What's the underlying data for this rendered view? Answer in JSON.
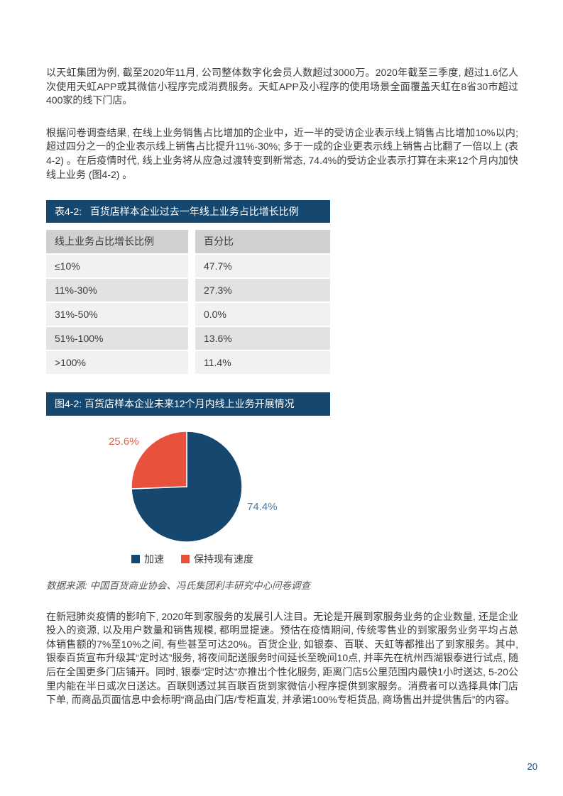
{
  "paragraphs": {
    "p1": "以天虹集团为例, 截至2020年11月, 公司整体数字化会员人数超过3000万。2020年截至三季度, 超过1.6亿人次使用天虹APP或其微信小程序完成消费服务。天虹APP及小程序的使用场景全面覆盖天虹在8省30市超过400家的线下门店。",
    "p2": "根据问卷调查结果, 在线上业务销售占比增加的企业中，近一半的受访企业表示线上销售占比增加10%以内; 超过四分之一的企业表示线上销售占比提升11%-30%; 多于一成的企业更表示线上销售占比翻了一倍以上 (表4-2) 。在后疫情时代, 线上业务将从应急过渡转变到新常态, 74.4%的受访企业表示打算在未来12个月内加快线上业务 (图4-2) 。",
    "p3": "在新冠肺炎疫情的影响下, 2020年到家服务的发展引人注目。无论是开展到家服务业务的企业数量, 还是企业投入的资源, 以及用户数量和销售规模, 都明显提速。预估在疫情期间, 传统零售业的到家服务业务平均占总体销售额的7%至10%之间, 有些甚至可达20%。百货企业, 如银泰、百联、天虹等都推出了到家服务。其中, 银泰百货宣布升级其“定时达”服务, 将夜间配送服务时间延长至晚间10点, 并率先在杭州西湖银泰进行试点, 随后在全国更多门店铺开。同时, 银泰“定时达”亦推出个性化服务, 距离门店5公里范围内最快1小时送达, 5-20公里内能在半日或次日送达。百联则透过其百联百货到家微信小程序提供到家服务。消费者可以选择具体门店下单, 而商品页面信息中会标明“商品由门店/专柜直发, 并承诺100%专柜货品, 商场售出并提供售后”的内容。"
  },
  "table": {
    "title": "表4-2:   百货店样本企业过去一年线上业务占比增长比例",
    "headers": [
      "线上业务占比增长比例",
      "百分比"
    ],
    "rows": [
      [
        "≤10%",
        "47.7%"
      ],
      [
        "11%-30%",
        "27.3%"
      ],
      [
        "31%-50%",
        "0.0%"
      ],
      [
        "51%-100%",
        "13.6%"
      ],
      [
        ">100%",
        "11.4%"
      ]
    ]
  },
  "figure": {
    "title": "图4-2: 百货店样本企业未来12个月内线上业务开展情况",
    "source": "数据来源: 中国百货商业协会、冯氏集团利丰研究中心问卷调查"
  },
  "chart_data": {
    "type": "pie",
    "title": "百货店样本企业未来12个月内线上业务开展情况",
    "start_angle_deg": -90,
    "direction": "clockwise",
    "legend_position": "bottom",
    "slices": [
      {
        "label": "加速",
        "value": 74.4,
        "label_text": "74.4%",
        "color": "#16476E",
        "label_color": "#4E7CA3"
      },
      {
        "label": "保持现有速度",
        "value": 25.6,
        "label_text": "25.6%",
        "color": "#E8513B",
        "label_color": "#E8604B"
      }
    ]
  },
  "colors": {
    "accent_navy": "#16476E",
    "accent_red": "#E8513B",
    "table_header": "#D0D0D0",
    "table_row_light": "#F1F1F1",
    "table_row_dark": "#E2E2E2"
  },
  "page": {
    "number": "20"
  }
}
